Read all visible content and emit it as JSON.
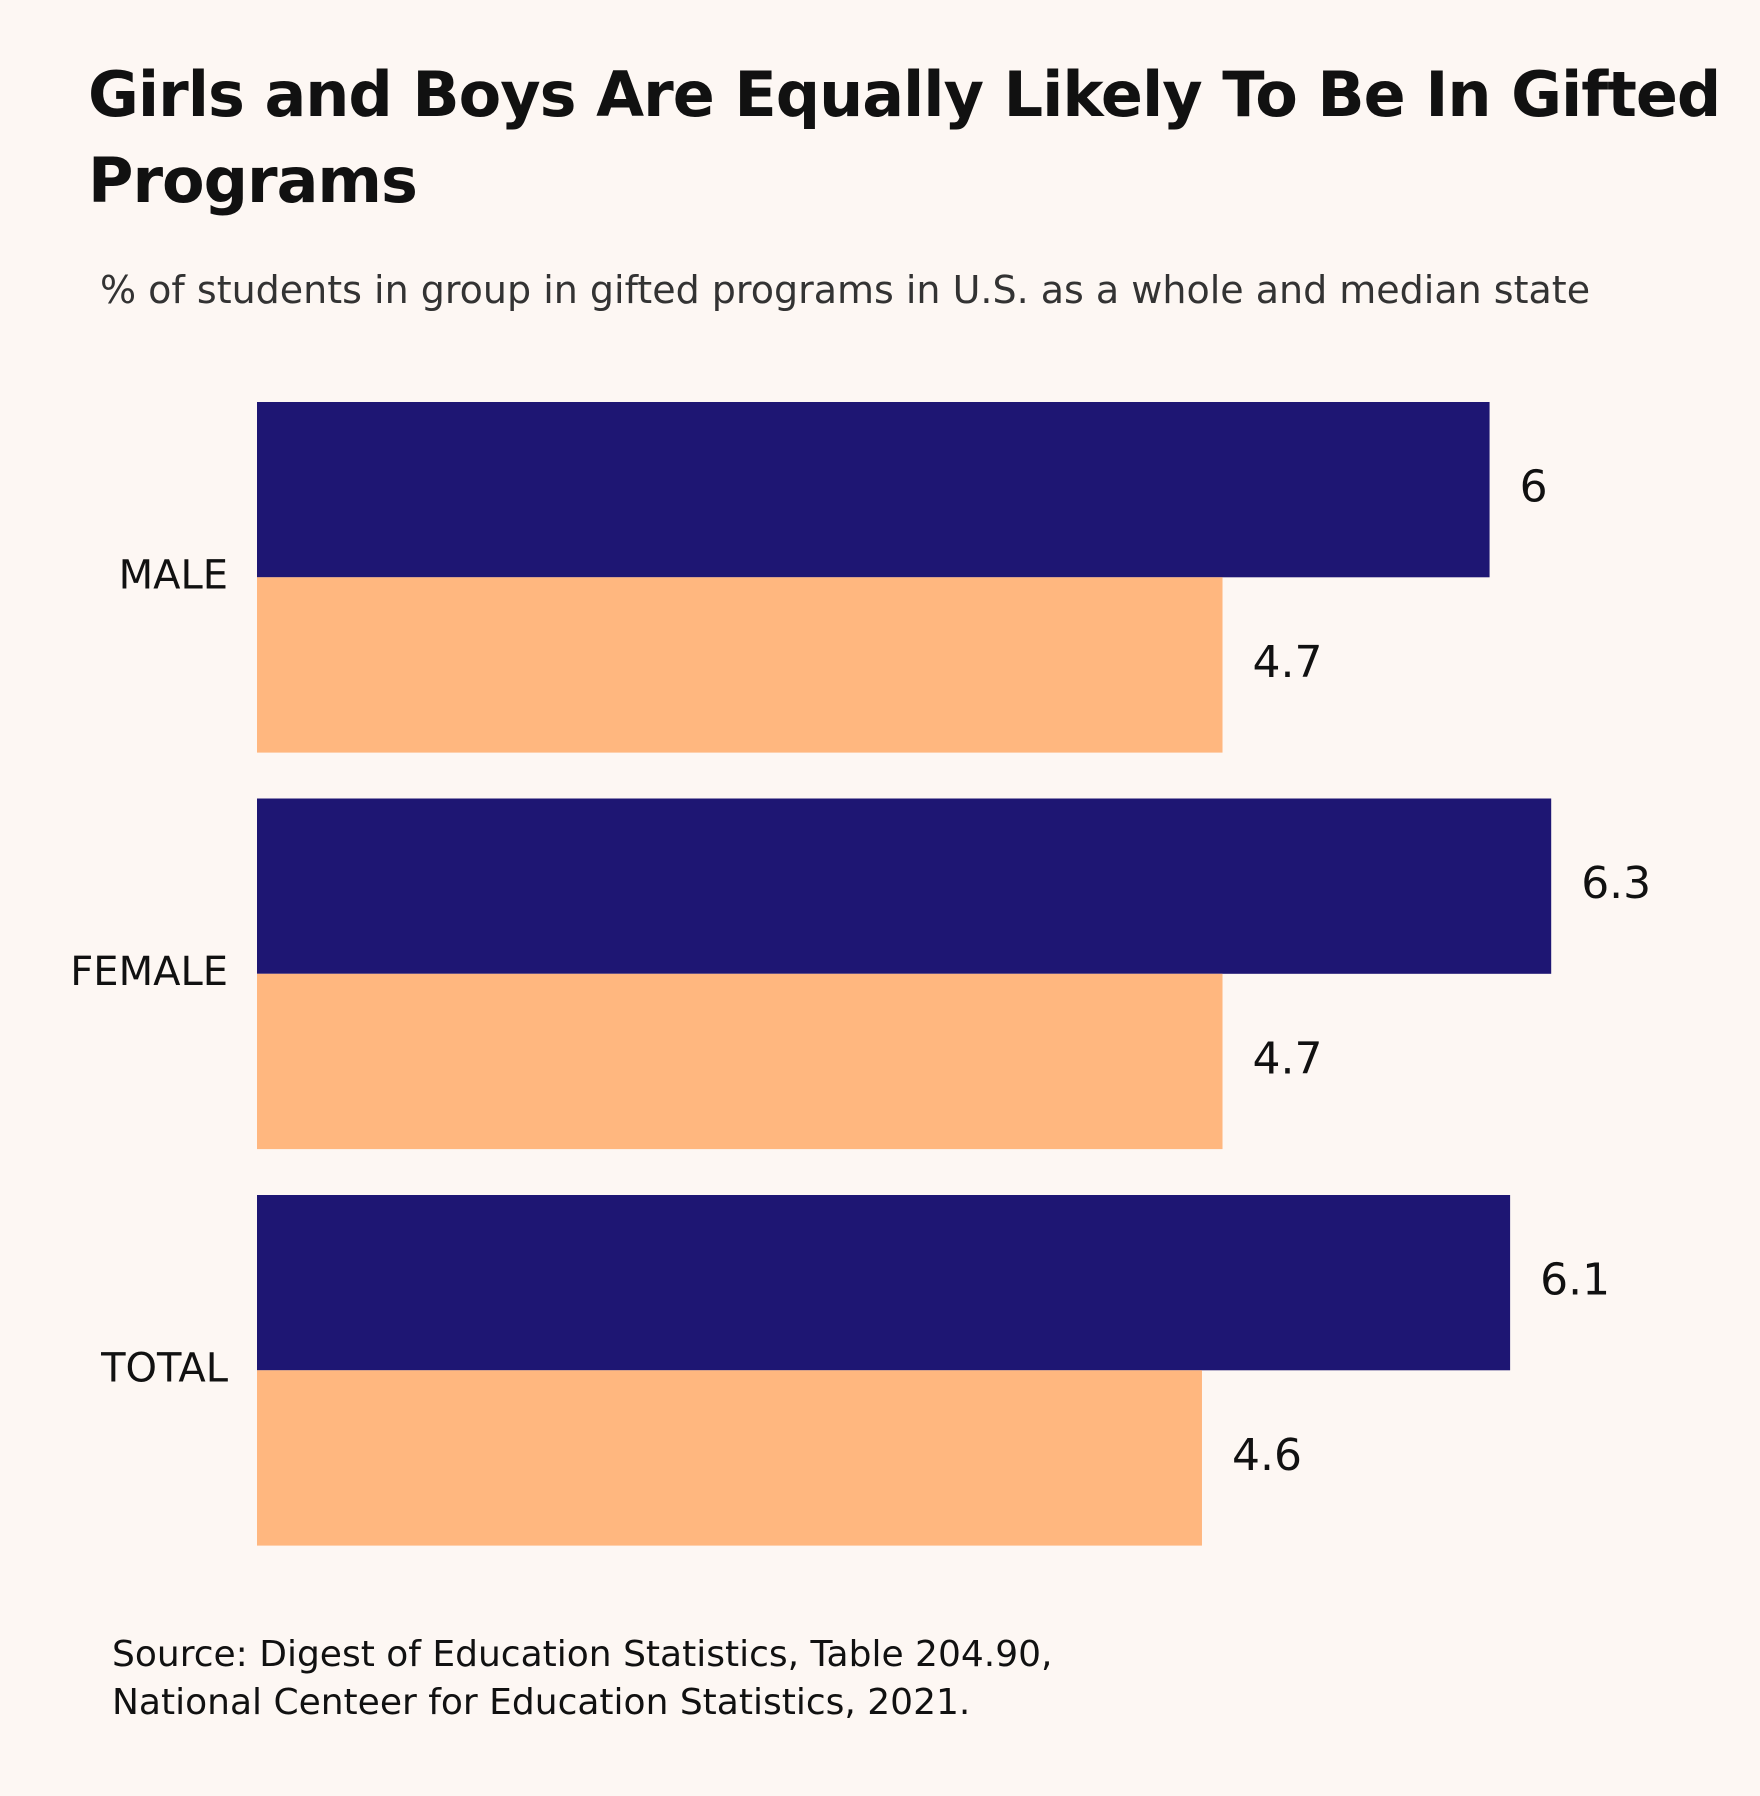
{
  "chart_data": {
    "type": "bar",
    "orientation": "horizontal",
    "title": "Girls and Boys Are Equally Likely To Be In Gifted Programs",
    "subtitle": "% of students in group in gifted programs in U.S. as a whole and median state",
    "source": [
      "Source: Digest of Education Statistics, Table 204.90,",
      "National Centeer for Education Statistics, 2021."
    ],
    "categories": [
      "MALE",
      "FEMALE",
      "TOTAL"
    ],
    "series": [
      {
        "color": "#1e1673",
        "values": [
          6,
          6.3,
          6.1
        ]
      },
      {
        "color": "#ffb77f",
        "values": [
          4.7,
          4.7,
          4.6
        ]
      }
    ],
    "xlim": [
      0,
      7
    ]
  }
}
